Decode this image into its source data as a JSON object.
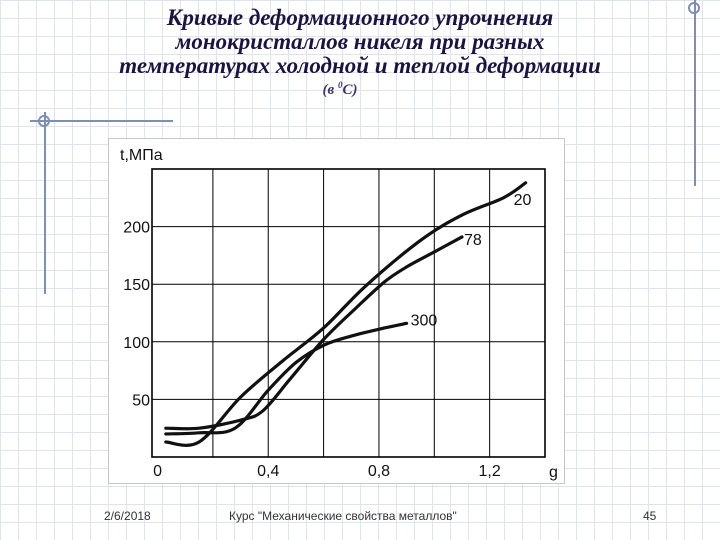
{
  "slide": {
    "title_lines": [
      "Кривые деформационного упрочнения",
      "монокристаллов никеля при разных",
      "температурах холодной и теплой деформации"
    ],
    "subtitle_prefix": "(в ",
    "subtitle_sup": "0",
    "subtitle_suffix": "С)",
    "footer_date": "2/6/2018",
    "footer_course": "Курс \"Механические свойства металлов\"",
    "footer_page": "45"
  },
  "chart_data": {
    "type": "line",
    "title": "",
    "xlabel": "g",
    "ylabel": "t,МПа",
    "xlim": [
      -0.02,
      1.4
    ],
    "ylim": [
      0,
      250
    ],
    "grid": true,
    "x_ticks": [
      {
        "value": 0,
        "label": "0"
      },
      {
        "value": 0.4,
        "label": "0,4"
      },
      {
        "value": 0.8,
        "label": "0,8"
      },
      {
        "value": 1.2,
        "label": "1,2"
      }
    ],
    "y_ticks": [
      {
        "value": 50,
        "label": "50"
      },
      {
        "value": 100,
        "label": "100"
      },
      {
        "value": 150,
        "label": "150"
      },
      {
        "value": 200,
        "label": "200"
      }
    ],
    "x_grid": [
      0.2,
      0.4,
      0.6,
      0.8,
      1.0,
      1.2
    ],
    "y_grid": [
      50,
      100,
      150,
      200
    ],
    "series": [
      {
        "name": "20",
        "color": "#111111",
        "points": [
          [
            0.03,
            13
          ],
          [
            0.15,
            13
          ],
          [
            0.3,
            52
          ],
          [
            0.45,
            83
          ],
          [
            0.6,
            112
          ],
          [
            0.75,
            148
          ],
          [
            0.95,
            188
          ],
          [
            1.1,
            210
          ],
          [
            1.25,
            225
          ],
          [
            1.33,
            238
          ]
        ]
      },
      {
        "name": "78",
        "color": "#111111",
        "points": [
          [
            0.03,
            25
          ],
          [
            0.15,
            25
          ],
          [
            0.3,
            32
          ],
          [
            0.38,
            40
          ],
          [
            0.48,
            68
          ],
          [
            0.6,
            102
          ],
          [
            0.72,
            130
          ],
          [
            0.82,
            152
          ],
          [
            0.9,
            165
          ],
          [
            1.0,
            178
          ],
          [
            1.1,
            191
          ]
        ]
      },
      {
        "name": "300",
        "color": "#111111",
        "points": [
          [
            0.03,
            20
          ],
          [
            0.15,
            21
          ],
          [
            0.28,
            25
          ],
          [
            0.4,
            58
          ],
          [
            0.5,
            82
          ],
          [
            0.6,
            97
          ],
          [
            0.7,
            105
          ],
          [
            0.82,
            112
          ],
          [
            0.9,
            116
          ]
        ]
      }
    ]
  }
}
